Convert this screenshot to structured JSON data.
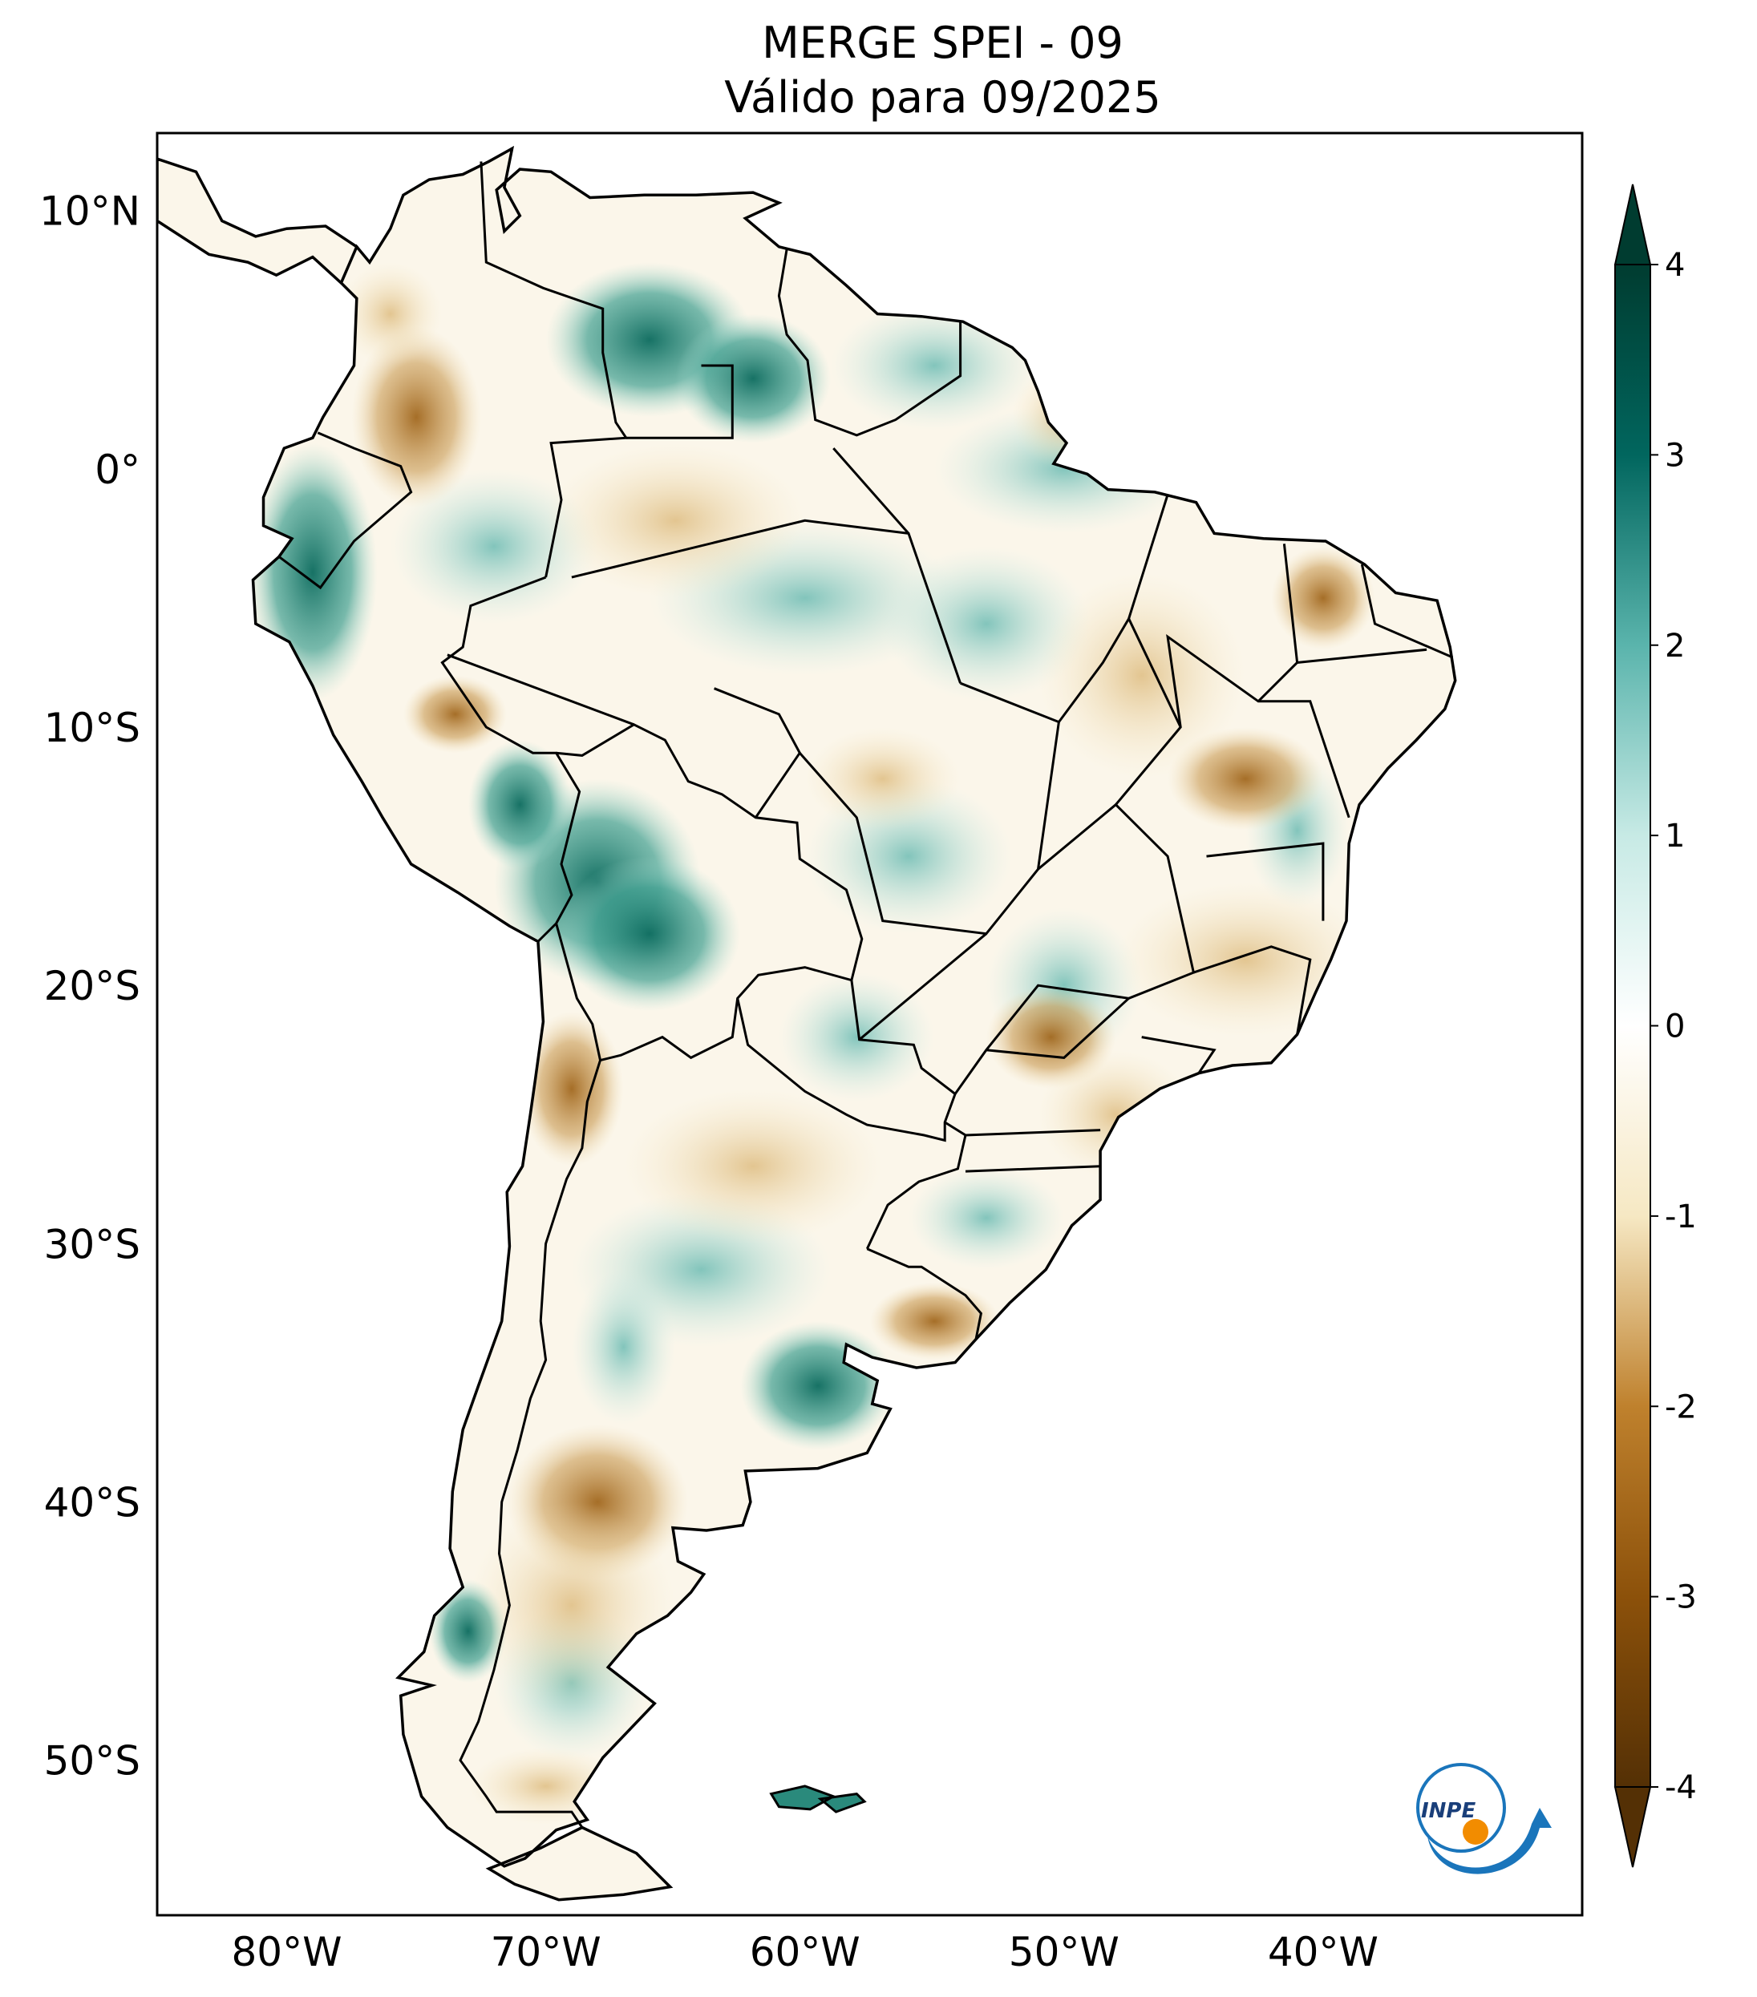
{
  "title": "MERGE   SPEI - 09",
  "subtitle": "Válido para 09/2025",
  "map": {
    "lon_range": [
      -85,
      -30
    ],
    "lat_range": [
      -56,
      13
    ],
    "lat_labels": [
      {
        "lat": 10,
        "label": "10°N"
      },
      {
        "lat": 0,
        "label": "0°"
      },
      {
        "lat": -10,
        "label": "10°S"
      },
      {
        "lat": -20,
        "label": "20°S"
      },
      {
        "lat": -30,
        "label": "30°S"
      },
      {
        "lat": -40,
        "label": "40°S"
      },
      {
        "lat": -50,
        "label": "50°S"
      }
    ],
    "lon_labels": [
      {
        "lon": -80,
        "label": "80°W"
      },
      {
        "lon": -70,
        "label": "70°W"
      },
      {
        "lon": -60,
        "label": "60°W"
      },
      {
        "lon": -50,
        "label": "50°W"
      },
      {
        "lon": -40,
        "label": "40°W"
      }
    ],
    "colors": {
      "wet_strong": "#0b6b5e",
      "wet_medium": "#3f9f90",
      "wet_light": "#a9ddd2",
      "neutral": "#ffffff",
      "dry_light": "#eed9ac",
      "dry_medium": "#c99a52",
      "dry_strong": "#8c510a",
      "border": "#000000"
    }
  },
  "colorbar": {
    "min": -4,
    "max": 4,
    "extend": "both",
    "ticks": [
      {
        "value": 4,
        "label": "4"
      },
      {
        "value": 3,
        "label": "3"
      },
      {
        "value": 2,
        "label": "2"
      },
      {
        "value": 1,
        "label": "1"
      },
      {
        "value": 0,
        "label": "0"
      },
      {
        "value": -1,
        "label": "-1"
      },
      {
        "value": -2,
        "label": "-2"
      },
      {
        "value": -3,
        "label": "-3"
      },
      {
        "value": -4,
        "label": "-4"
      }
    ],
    "stops": [
      {
        "value": -4,
        "color": "#543005"
      },
      {
        "value": -3,
        "color": "#8c510a"
      },
      {
        "value": -2,
        "color": "#bf812d"
      },
      {
        "value": -1,
        "color": "#f6e8c3"
      },
      {
        "value": 0,
        "color": "#ffffff"
      },
      {
        "value": 1,
        "color": "#c7eae5"
      },
      {
        "value": 2,
        "color": "#5ab4ac"
      },
      {
        "value": 3,
        "color": "#01665e"
      },
      {
        "value": 4,
        "color": "#003c30"
      }
    ]
  },
  "logo": {
    "text": "INPE",
    "accent": "#f28c00",
    "blue": "#1a75bb"
  }
}
